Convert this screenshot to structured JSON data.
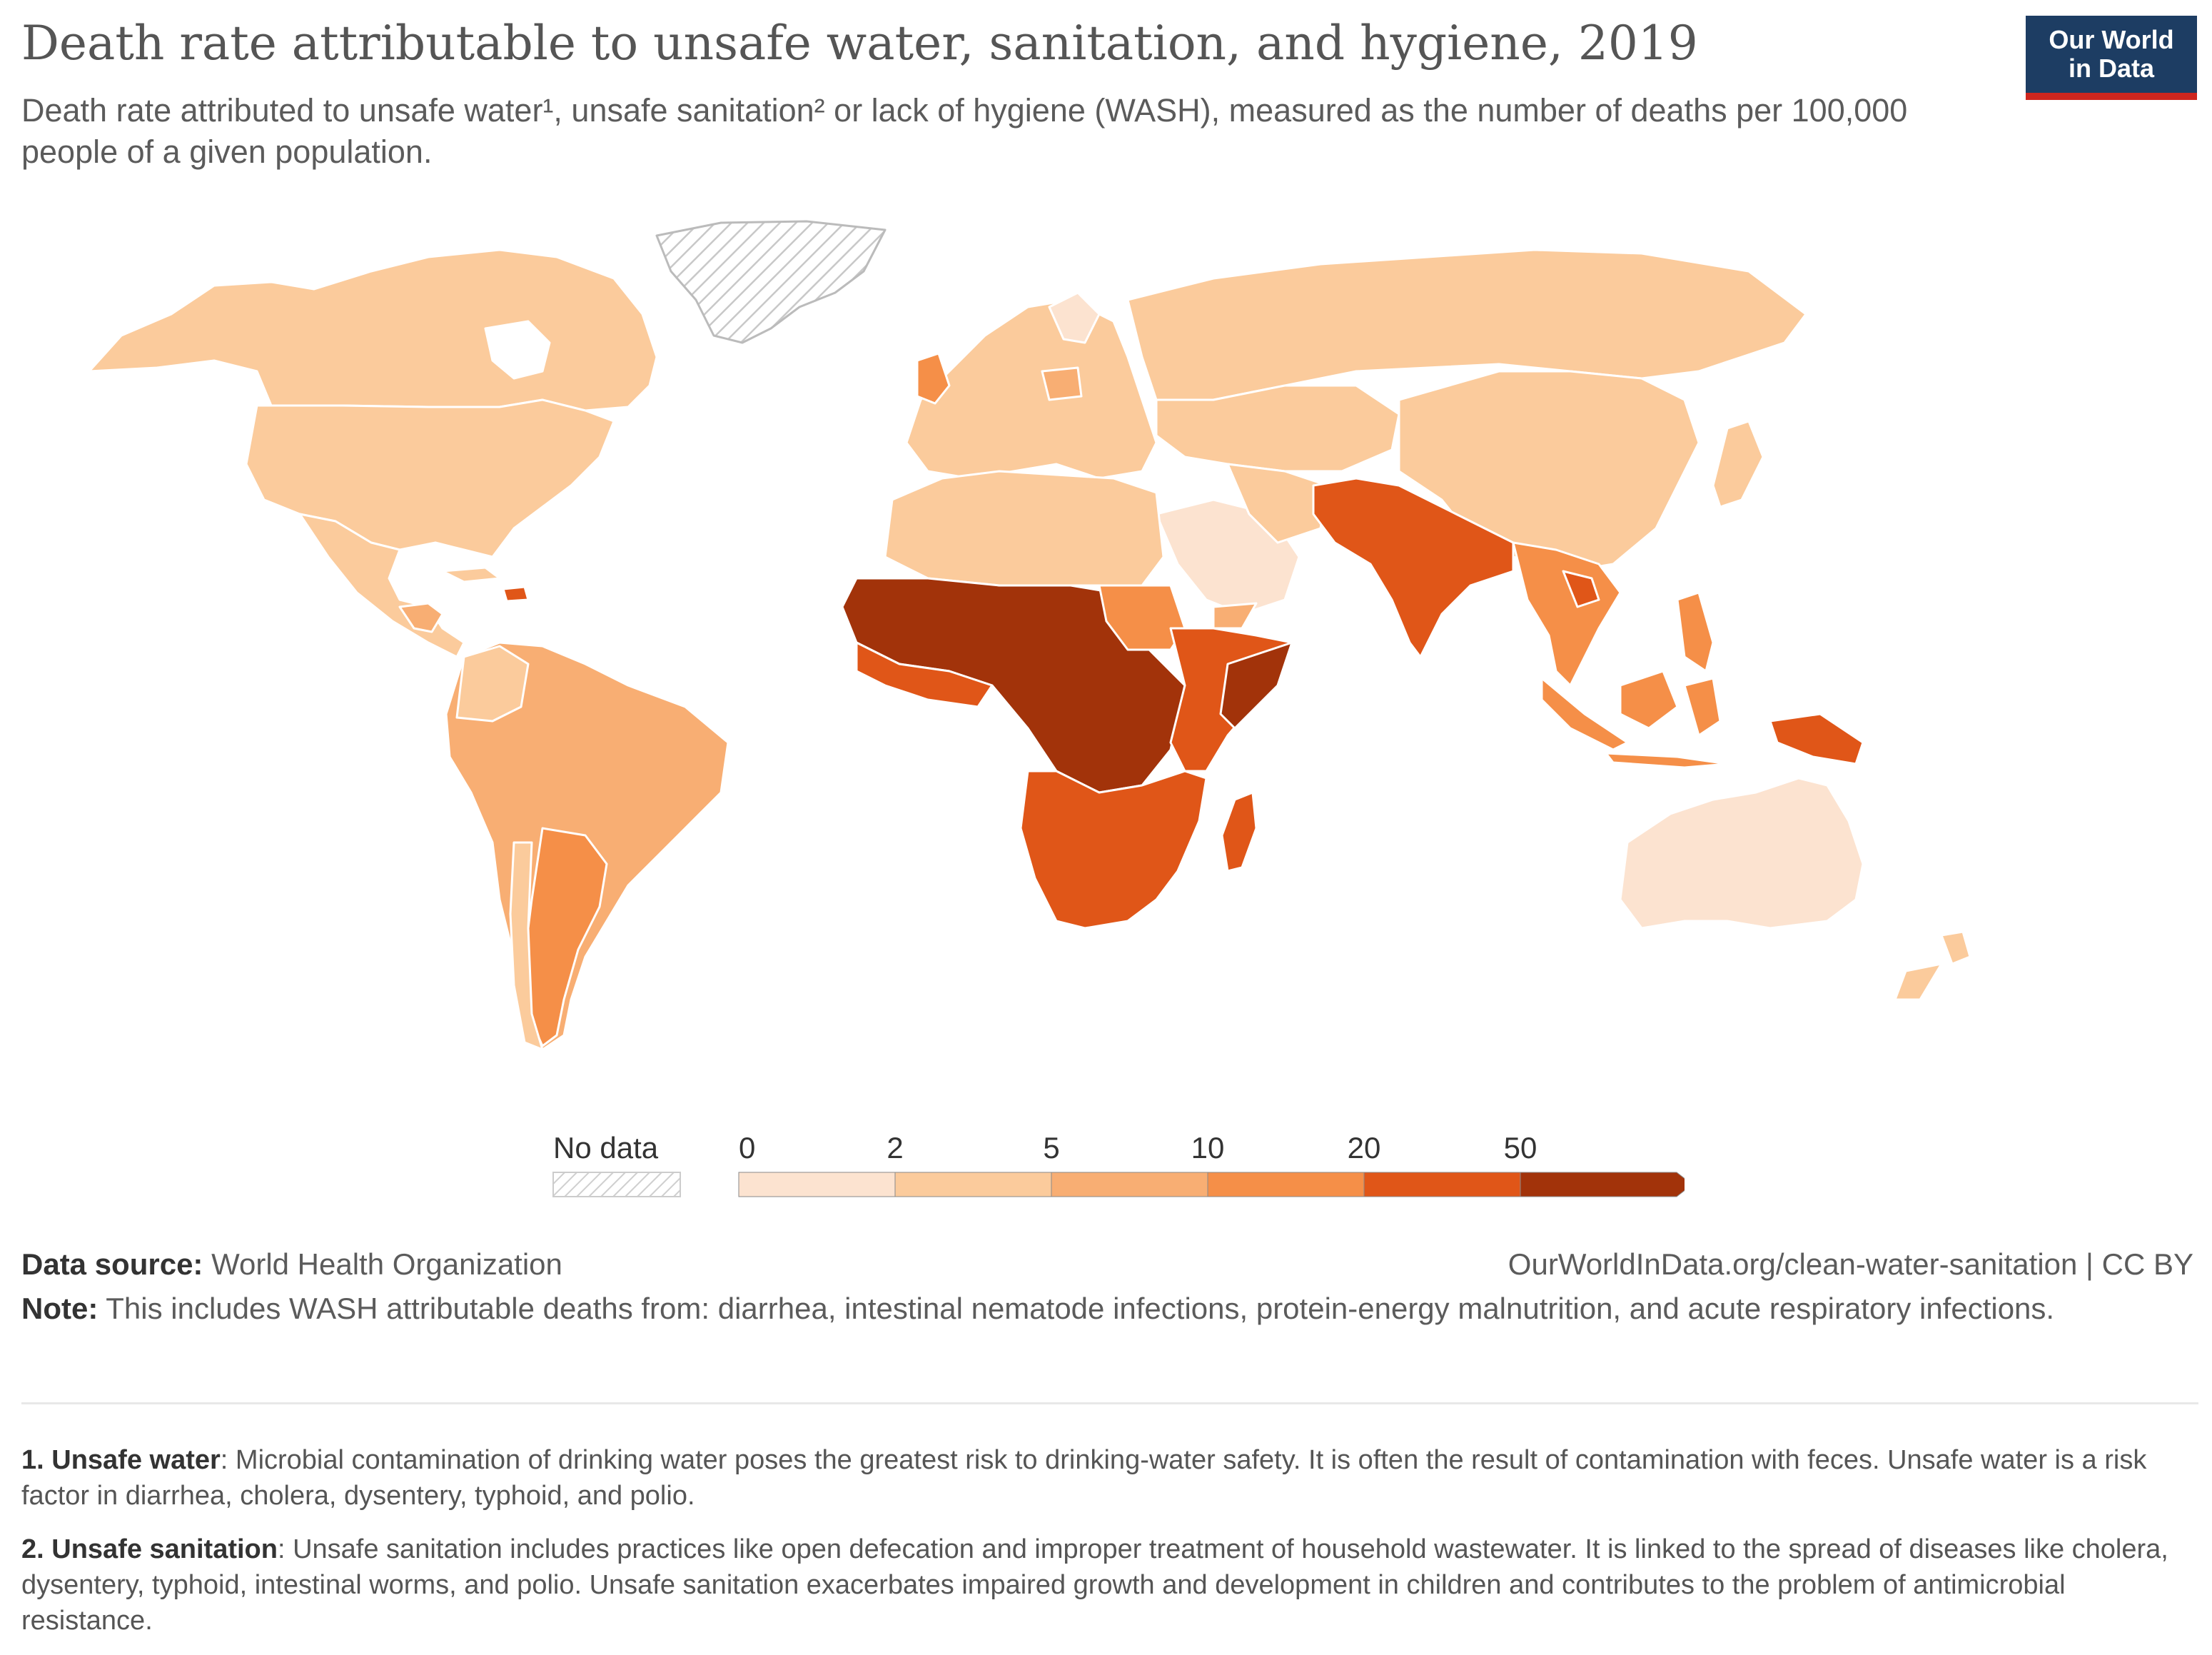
{
  "header": {
    "title": "Death rate attributable to unsafe water, sanitation, and hygiene, 2019",
    "subtitle": "Death rate attributed to unsafe water¹, unsafe sanitation² or lack of hygiene (WASH), measured as the number of deaths per 100,000 people of a given population.",
    "logo_line1": "Our World",
    "logo_line2": "in Data"
  },
  "chart_data": {
    "type": "choropleth-map",
    "title": "Death rate attributable to unsafe water, sanitation, and hygiene, 2019",
    "unit": "deaths per 100,000 people",
    "legend": {
      "no_data_label": "No data",
      "breakpoints": [
        "0",
        "2",
        "5",
        "10",
        "20",
        "50"
      ],
      "colors": [
        "#fce3d0",
        "#fbcb9c",
        "#f8ae73",
        "#f58f48",
        "#e05618",
        "#a2330a"
      ],
      "no_data_color": "#e6e6e6"
    },
    "regions": [
      {
        "name": "North America",
        "bin": "2-5"
      },
      {
        "name": "South America",
        "bin": "5-10"
      },
      {
        "name": "Argentina",
        "bin": "10-20"
      },
      {
        "name": "Europe",
        "bin": "2-5"
      },
      {
        "name": "Russia / Central Asia",
        "bin": "2-5"
      },
      {
        "name": "China",
        "bin": "2-5"
      },
      {
        "name": "North Africa",
        "bin": "2-5"
      },
      {
        "name": "Arabian Peninsula",
        "bin": "0-2"
      },
      {
        "name": "West Africa",
        "bin": "50+"
      },
      {
        "name": "Central Africa",
        "bin": "50+"
      },
      {
        "name": "East Africa",
        "bin": "20-50"
      },
      {
        "name": "Southern Africa",
        "bin": "20-50"
      },
      {
        "name": "Madagascar",
        "bin": "20-50"
      },
      {
        "name": "South Asia",
        "bin": "20-50"
      },
      {
        "name": "Southeast Asia",
        "bin": "10-20"
      },
      {
        "name": "Indonesia",
        "bin": "10-20"
      },
      {
        "name": "Papua New Guinea",
        "bin": "20-50"
      },
      {
        "name": "Australia",
        "bin": "0-2"
      },
      {
        "name": "New Zealand",
        "bin": "2-5"
      },
      {
        "name": "Greenland",
        "bin": "no data"
      }
    ]
  },
  "footer": {
    "source_label": "Data source:",
    "source_value": "World Health Organization",
    "url": "OurWorldInData.org/clean-water-sanitation | CC BY",
    "note_label": "Note:",
    "note_text": "This includes WASH attributable deaths from: diarrhea, intestinal nematode infections, protein-energy malnutrition, and acute respiratory infections."
  },
  "footnotes": [
    {
      "label": "1. Unsafe water",
      "text": ": Microbial contamination of drinking water poses the greatest risk to drinking-water safety. It is often the result of contamination with feces. Unsafe water is a risk factor in diarrhea, cholera, dysentery, typhoid, and polio."
    },
    {
      "label": "2. Unsafe sanitation",
      "text": ": Unsafe sanitation includes practices like open defecation and improper treatment of household wastewater. It is linked to the spread of diseases like cholera, dysentery, typhoid, intestinal worms, and polio. Unsafe sanitation exacerbates impaired growth and development in children and contributes to the problem of antimicrobial resistance."
    }
  ]
}
